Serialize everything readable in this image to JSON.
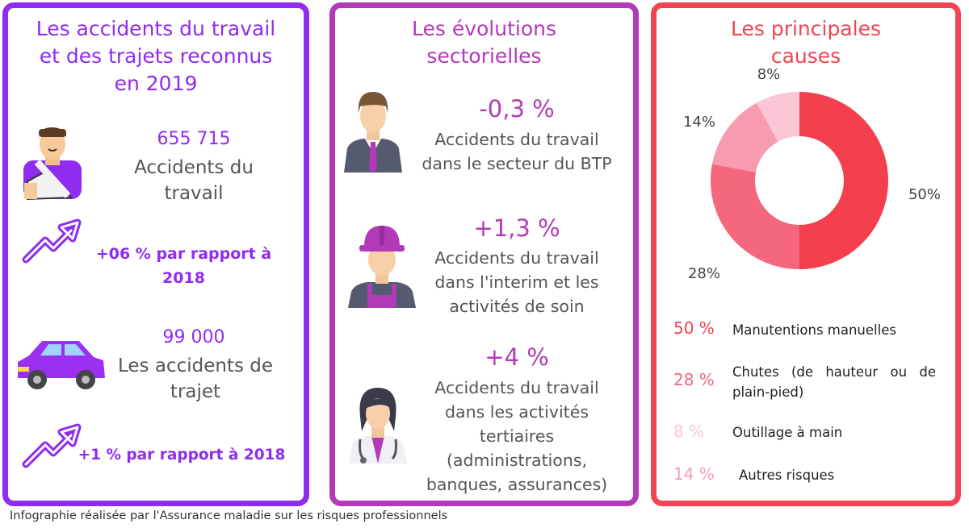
{
  "col1": {
    "title": [
      "Les accidents du travail",
      "et des trajets reconnus",
      "en 2019"
    ],
    "work_number": "655 715",
    "work_label": [
      "Accidents du",
      "travail"
    ],
    "work_trend": [
      "+06 % par rapport à",
      "2018"
    ],
    "commute_number": "99 000",
    "commute_label": [
      "Les accidents de",
      "trajet"
    ],
    "commute_trend": "+1 % par rapport à 2018",
    "icons": [
      "injured-person-icon",
      "trend-up-arrow-icon",
      "car-icon",
      "trend-up-arrow-icon"
    ]
  },
  "col2": {
    "title": [
      "Les évolutions",
      "sectorielles"
    ],
    "items": [
      {
        "value": "-0,3 %",
        "lines": [
          "Accidents du travail",
          "dans le secteur du BTP"
        ],
        "icon": "businessman-icon"
      },
      {
        "value": "+1,3 %",
        "lines": [
          "Accidents du travail",
          "dans l'interim et les",
          "activités de soin"
        ],
        "icon": "construction-worker-icon"
      },
      {
        "value": "+4 %",
        "lines": [
          "Accidents du travail",
          "dans les activités",
          "tertiaires",
          "(administrations,",
          "banques, assurances)"
        ],
        "icon": "doctor-icon"
      }
    ]
  },
  "col3": {
    "title": [
      "Les principales",
      "causes"
    ]
  },
  "chart_data": {
    "type": "pie",
    "donut": true,
    "title": "Les principales causes",
    "slices": [
      {
        "label": "Manutentions manuelles",
        "value": 50,
        "value_label": "50%",
        "legend_value": "50 %",
        "color": "#f43f4f"
      },
      {
        "label": "Chutes (de hauteur ou de plain-pied)",
        "value": 28,
        "value_label": "28%",
        "legend_value": "28 %",
        "color": "#f5677d"
      },
      {
        "label": "Autres risques",
        "value": 14,
        "value_label": "14%",
        "legend_value": "14 %",
        "color": "#f79bb1"
      },
      {
        "label": "Outillage à main",
        "value": 8,
        "value_label": "8%",
        "legend_value": "8 %",
        "color": "#fac5d4"
      }
    ],
    "legend_order": [
      0,
      1,
      3,
      2
    ],
    "legend_lines": [
      [
        "Manutentions manuelles"
      ],
      [
        "Chutes (de hauteur ou de",
        "plain-pied)"
      ],
      [
        "Outillage à main"
      ],
      [
        "Autres risques"
      ]
    ]
  },
  "colors": {
    "violet": "#8f2cf0",
    "magenta": "#b23ab8",
    "red": "#f04552"
  },
  "footer": "Infographie réalisée par l'Assurance maladie sur les risques professionnels"
}
